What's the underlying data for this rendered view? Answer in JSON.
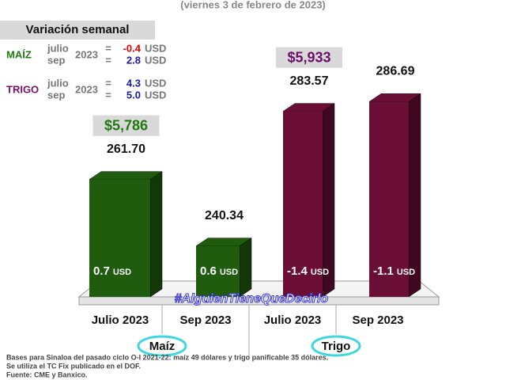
{
  "chart_data": {
    "type": "bar",
    "subtitle": "(viernes 3 de febrero de 2023)",
    "categories": [
      "Julio 2023",
      "Sep 2023",
      "Julio 2023",
      "Sep 2023"
    ],
    "values": [
      261.7,
      240.34,
      283.57,
      286.69
    ],
    "value_labels": [
      "261.70",
      "240.34",
      "283.57",
      "286.69"
    ],
    "colors": [
      "#1f5c0e",
      "#1f5c0e",
      "#6b0e36",
      "#6b0e36"
    ],
    "ylim": [
      224,
      300
    ],
    "bar_changes": [
      0.7,
      0.6,
      -1.4,
      -1.1
    ],
    "bar_change_unit": "USD",
    "groups": [
      "Maíz",
      "Trigo"
    ],
    "group_prices": [
      {
        "value": 5786,
        "label": "$5,786"
      },
      {
        "value": 5933,
        "label": "$5,933"
      }
    ],
    "group_price_colors": [
      "#1f7a10",
      "#6b0e6b"
    ],
    "weekly_change": {
      "title": "Variación semanal",
      "year": "2023",
      "equals": "=",
      "unit": "USD",
      "crops": [
        {
          "name": "MAÍZ",
          "color": "#1f7a10",
          "rows": [
            {
              "month": "julio",
              "value": -0.4,
              "label": "-0.4",
              "color": "#e00000"
            },
            {
              "month": "sep",
              "value": 2.8,
              "label": "2.8",
              "color": "#1a1aa8"
            }
          ]
        },
        {
          "name": "TRIGO",
          "color": "#7a0e6b",
          "rows": [
            {
              "month": "julio",
              "value": 4.3,
              "label": "4.3",
              "color": "#1a1aa8"
            },
            {
              "month": "sep",
              "value": 5.0,
              "label": "5.0",
              "color": "#1a1aa8"
            }
          ]
        }
      ]
    },
    "watermark": "#AlguienTieneQueDecirlo",
    "footnotes": [
      "Bases para Sinaloa del pasado ciclo O-I 2021-22: maíz 49 dólares y trigo panificable 35 dólares.",
      "Se utiliza el TC Fix publicado en el DOF.",
      "Fuente: CME y Banxico."
    ]
  }
}
